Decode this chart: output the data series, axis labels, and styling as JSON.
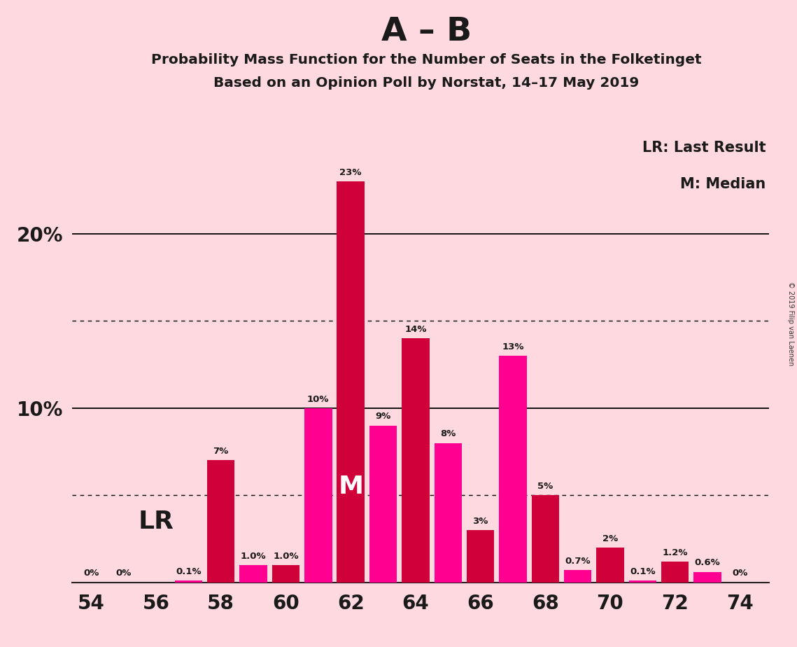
{
  "title_main": "A – B",
  "title_sub1": "Probability Mass Function for the Number of Seats in the Folketinget",
  "title_sub2": "Based on an Opinion Poll by Norstat, 14–17 May 2019",
  "copyright": "© 2019 Filip van Laenen",
  "seats": [
    54,
    55,
    56,
    57,
    58,
    59,
    60,
    61,
    62,
    63,
    64,
    65,
    66,
    67,
    68,
    69,
    70,
    71,
    72,
    73,
    74
  ],
  "values": [
    0.0,
    0.0,
    0.0,
    0.1,
    7.0,
    1.0,
    1.0,
    10.0,
    23.0,
    9.0,
    14.0,
    8.0,
    3.0,
    13.0,
    5.0,
    0.7,
    2.0,
    0.1,
    1.2,
    0.6,
    0.0
  ],
  "labels": [
    "0%",
    "0%",
    "",
    "0.1%",
    "7%",
    "1.0%",
    "1.0%",
    "10%",
    "23%",
    "9%",
    "14%",
    "8%",
    "3%",
    "13%",
    "5%",
    "0.7%",
    "2%",
    "0.1%",
    "1.2%",
    "0.6%",
    "0%"
  ],
  "show_zero_labels": [
    true,
    true,
    false,
    true,
    true,
    true,
    true,
    true,
    true,
    true,
    true,
    true,
    true,
    true,
    true,
    true,
    true,
    true,
    true,
    true,
    true
  ],
  "colors": [
    "#D0003A",
    "#FF0090",
    "#D0003A",
    "#FF0090",
    "#D0003A",
    "#FF0090",
    "#D0003A",
    "#FF0090",
    "#D0003A",
    "#FF0090",
    "#D0003A",
    "#FF0090",
    "#D0003A",
    "#FF0090",
    "#D0003A",
    "#FF0090",
    "#D0003A",
    "#FF0090",
    "#D0003A",
    "#FF0090",
    "#D0003A"
  ],
  "background_color": "#FFD9E0",
  "ylim": [
    0,
    26
  ],
  "solid_lines": [
    10,
    20
  ],
  "dotted_lines": [
    5,
    15
  ],
  "LR_x": 56.0,
  "LR_y": 3.5,
  "M_x": 62,
  "M_y": 5.5,
  "legend_LR": "LR: Last Result",
  "legend_M": "M: Median",
  "bar_width": 0.85,
  "xticks": [
    54,
    56,
    58,
    60,
    62,
    64,
    66,
    68,
    70,
    72,
    74
  ],
  "xlim_left": 53.4,
  "xlim_right": 74.9
}
